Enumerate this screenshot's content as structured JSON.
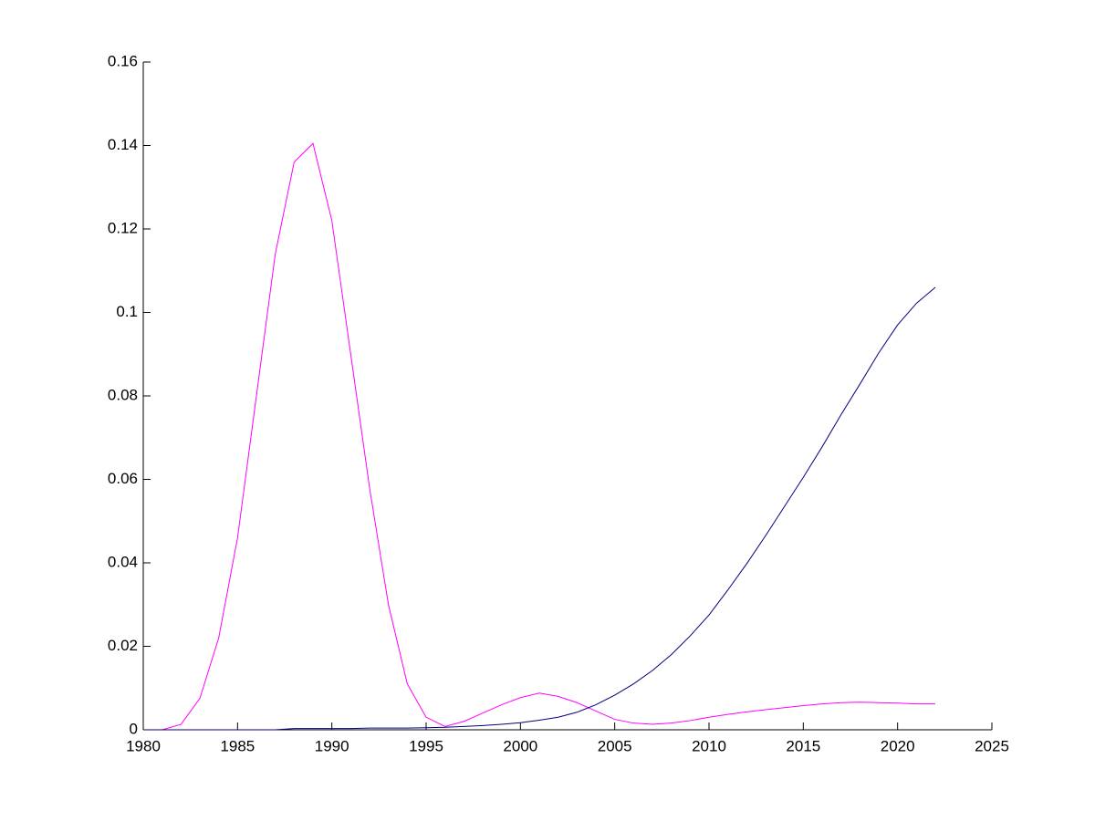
{
  "chart_data": {
    "type": "line",
    "x": [
      1980,
      1981,
      1982,
      1983,
      1984,
      1985,
      1986,
      1987,
      1988,
      1989,
      1990,
      1991,
      1992,
      1993,
      1994,
      1995,
      1996,
      1997,
      1998,
      1999,
      2000,
      2001,
      2002,
      2003,
      2004,
      2005,
      2006,
      2007,
      2008,
      2009,
      2010,
      2011,
      2012,
      2013,
      2014,
      2015,
      2016,
      2017,
      2018,
      2019,
      2020,
      2021,
      2022
    ],
    "series": [
      {
        "color": "#ff00ff",
        "values": [
          0,
          0,
          0.0013,
          0.0075,
          0.022,
          0.046,
          0.08,
          0.114,
          0.136,
          0.1405,
          0.122,
          0.09,
          0.058,
          0.03,
          0.011,
          0.003,
          0.0008,
          0.002,
          0.004,
          0.006,
          0.0077,
          0.0088,
          0.008,
          0.0065,
          0.0045,
          0.0025,
          0.0016,
          0.0013,
          0.0016,
          0.0022,
          0.003,
          0.0037,
          0.0043,
          0.0048,
          0.0053,
          0.0058,
          0.0062,
          0.0065,
          0.0066,
          0.0065,
          0.0064,
          0.0062,
          0.0062
        ]
      },
      {
        "color": "#000080",
        "values": [
          0,
          0,
          0,
          0,
          0,
          0,
          0,
          0,
          0.0003,
          0.0003,
          0.0003,
          0.0003,
          0.0004,
          0.0004,
          0.0004,
          0.0005,
          0.0006,
          0.0008,
          0.001,
          0.0013,
          0.0017,
          0.0023,
          0.003,
          0.0042,
          0.006,
          0.0083,
          0.011,
          0.0142,
          0.018,
          0.0225,
          0.0275,
          0.0335,
          0.0398,
          0.0465,
          0.0535,
          0.0605,
          0.0678,
          0.0755,
          0.0828,
          0.0903,
          0.097,
          0.1022,
          0.106
        ]
      }
    ],
    "xlim": [
      1980,
      2025
    ],
    "xticks": [
      1980,
      1985,
      1990,
      1995,
      2000,
      2005,
      2010,
      2015,
      2020,
      2025
    ],
    "ylim": [
      0,
      0.16
    ],
    "yticks": [
      0,
      0.02,
      0.04,
      0.06,
      0.08,
      0.1,
      0.12,
      0.14,
      0.16
    ],
    "grid": false
  }
}
